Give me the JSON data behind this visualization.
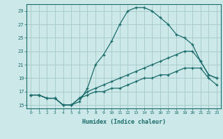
{
  "title": "",
  "xlabel": "Humidex (Indice chaleur)",
  "xlim": [
    -0.5,
    23.5
  ],
  "ylim": [
    14.5,
    30.0
  ],
  "yticks": [
    15,
    17,
    19,
    21,
    23,
    25,
    27,
    29
  ],
  "xticks": [
    0,
    1,
    2,
    3,
    4,
    5,
    6,
    7,
    8,
    9,
    10,
    11,
    12,
    13,
    14,
    15,
    16,
    17,
    18,
    19,
    20,
    21,
    22,
    23
  ],
  "bg_color": "#cce8e8",
  "grid_color": "#aacccc",
  "line_color": "#1a6b6b",
  "hours": [
    0,
    1,
    2,
    3,
    4,
    5,
    6,
    7,
    8,
    9,
    10,
    11,
    12,
    13,
    14,
    15,
    16,
    17,
    18,
    19,
    20,
    21,
    22,
    23
  ],
  "line1": [
    16.5,
    16.5,
    16.0,
    16.0,
    15.0,
    15.0,
    15.5,
    17.5,
    21.0,
    22.5,
    24.5,
    27.0,
    29.0,
    29.5,
    29.5,
    29.0,
    28.0,
    27.0,
    25.5,
    25.0,
    24.0,
    21.5,
    19.5,
    19.0
  ],
  "line2": [
    16.5,
    16.5,
    16.0,
    16.0,
    15.0,
    15.0,
    16.0,
    17.0,
    17.5,
    18.0,
    18.5,
    19.0,
    19.5,
    20.0,
    20.5,
    21.0,
    21.5,
    22.0,
    22.5,
    23.0,
    23.0,
    21.5,
    19.5,
    19.0
  ],
  "line3": [
    16.5,
    16.5,
    16.0,
    16.0,
    15.0,
    15.0,
    16.0,
    16.5,
    17.0,
    17.0,
    17.5,
    17.5,
    18.0,
    18.5,
    19.0,
    19.0,
    19.5,
    19.5,
    20.0,
    20.5,
    20.5,
    20.5,
    19.0,
    18.0
  ]
}
